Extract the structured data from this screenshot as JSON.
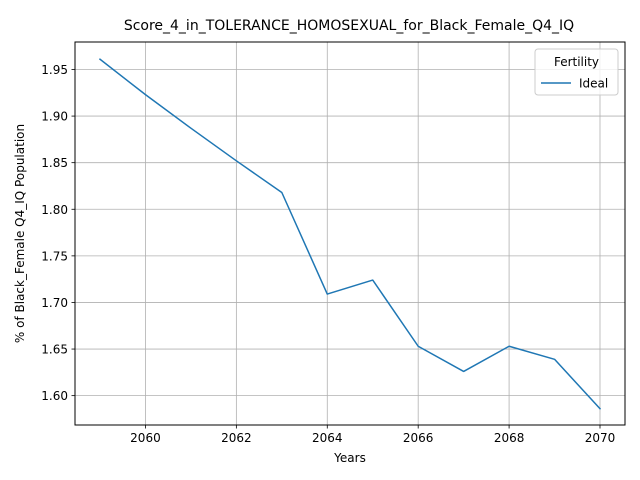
{
  "chart_data": {
    "type": "line",
    "title": "Score_4_in_TOLERANCE_HOMOSEXUAL_for_Black_Female_Q4_IQ",
    "xlabel": "Years",
    "ylabel": "% of Black_Female Q4_IQ Population",
    "xlim": [
      2058.45,
      2070.55
    ],
    "ylim": [
      1.5685,
      1.9795
    ],
    "xticks": [
      2060,
      2062,
      2064,
      2066,
      2068,
      2070
    ],
    "yticks": [
      1.6,
      1.65,
      1.7,
      1.75,
      1.8,
      1.85,
      1.9,
      1.95
    ],
    "grid": true,
    "legend": {
      "title": "Fertility",
      "placement": "top-right"
    },
    "series": [
      {
        "name": "Ideal",
        "color": "#1f77b4",
        "x": [
          2059,
          2060,
          2061,
          2062,
          2063,
          2064,
          2065,
          2066,
          2067,
          2068,
          2069,
          2070
        ],
        "y": [
          1.961,
          1.923,
          1.887,
          1.852,
          1.818,
          1.709,
          1.724,
          1.653,
          1.626,
          1.653,
          1.639,
          1.586
        ]
      }
    ]
  }
}
